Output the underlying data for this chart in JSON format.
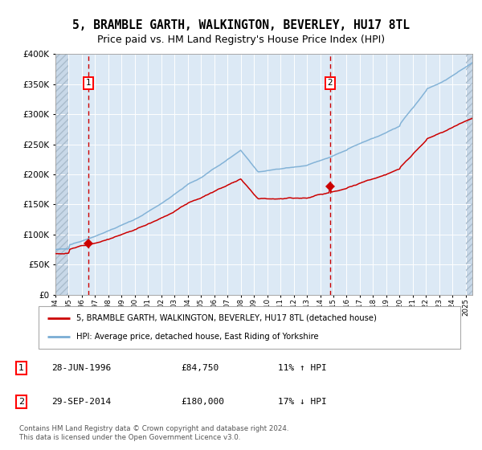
{
  "title": "5, BRAMBLE GARTH, WALKINGTON, BEVERLEY, HU17 8TL",
  "subtitle": "Price paid vs. HM Land Registry's House Price Index (HPI)",
  "legend_line1": "5, BRAMBLE GARTH, WALKINGTON, BEVERLEY, HU17 8TL (detached house)",
  "legend_line2": "HPI: Average price, detached house, East Riding of Yorkshire",
  "annotation1_date": "28-JUN-1996",
  "annotation1_price": "£84,750",
  "annotation1_hpi": "11% ↑ HPI",
  "annotation2_date": "29-SEP-2014",
  "annotation2_price": "£180,000",
  "annotation2_hpi": "17% ↓ HPI",
  "footer": "Contains HM Land Registry data © Crown copyright and database right 2024.\nThis data is licensed under the Open Government Licence v3.0.",
  "sale1_year": 1996.49,
  "sale1_price": 84750,
  "sale2_year": 2014.75,
  "sale2_price": 180000,
  "red_line_color": "#cc0000",
  "blue_line_color": "#7aadd4",
  "bg_color": "#dce9f5",
  "hatch_color": "#c8d8e8",
  "ylim_max": 400000,
  "ylim_min": 0,
  "xlim_min": 1994.0,
  "xlim_max": 2025.5,
  "hatch_left_end": 1995.0,
  "hatch_right_start": 2025.0
}
